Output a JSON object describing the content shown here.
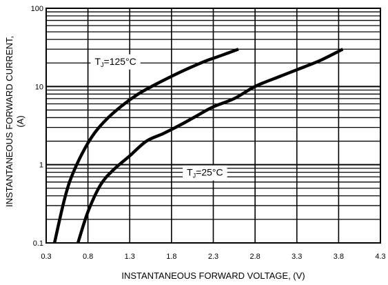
{
  "chart_data": {
    "type": "line",
    "title": "",
    "xlabel": "INSTANTANEOUS FORWARD VOLTAGE,  (V)",
    "ylabel_line1": "INSTANTANEOUS FORWARD CURRENT,",
    "ylabel_line2": "(A)",
    "x_scale": "linear",
    "y_scale": "log",
    "xlim": [
      0.3,
      4.3
    ],
    "ylim": [
      0.1,
      100
    ],
    "x_ticks": [
      0.3,
      0.8,
      1.3,
      1.8,
      2.3,
      2.8,
      3.3,
      3.8,
      4.3
    ],
    "x_tick_labels": [
      "0.3",
      "0.8",
      "1.3",
      "1.8",
      "2.3",
      "2.8",
      "3.3",
      "3.8",
      "4.3"
    ],
    "y_ticks": [
      0.1,
      1,
      10,
      100
    ],
    "y_tick_labels": [
      "0.1",
      "1",
      "10",
      "100"
    ],
    "grid": true,
    "annotations": [
      {
        "series": "tj125",
        "prefix": "T",
        "sub": "J",
        "suffix": "=125°C",
        "x": 1.13,
        "y": 21
      },
      {
        "series": "tj25",
        "prefix": "T",
        "sub": "J",
        "suffix": "=25°C",
        "x": 2.2,
        "y": 0.8
      }
    ],
    "series": [
      {
        "id": "tj125",
        "x": [
          0.4,
          0.5,
          0.58,
          0.7,
          0.85,
          1.0,
          1.2,
          1.4,
          1.6,
          1.8,
          2.0,
          2.2,
          2.4,
          2.6
        ],
        "y": [
          0.1,
          0.3,
          0.6,
          1.2,
          2.3,
          3.6,
          5.6,
          8.0,
          10.5,
          13.5,
          17,
          21,
          25,
          30
        ]
      },
      {
        "id": "tj25",
        "x": [
          0.68,
          0.8,
          0.95,
          1.1,
          1.3,
          1.5,
          1.7,
          1.9,
          2.1,
          2.3,
          2.55,
          2.8,
          3.1,
          3.4,
          3.6,
          3.85
        ],
        "y": [
          0.1,
          0.25,
          0.55,
          0.85,
          1.3,
          2.0,
          2.5,
          3.2,
          4.2,
          5.5,
          7.0,
          10.0,
          13.5,
          18,
          22,
          30
        ]
      }
    ]
  }
}
